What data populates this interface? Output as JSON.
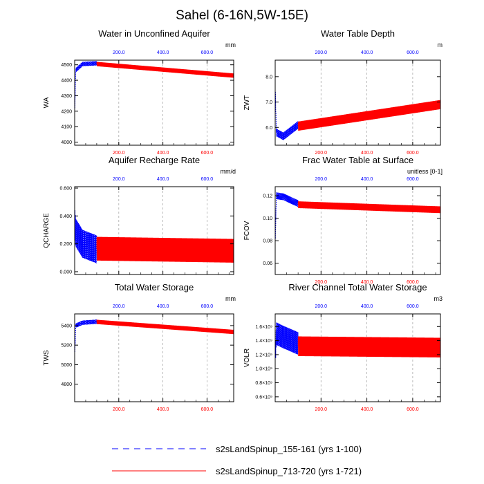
{
  "figure_title": "Sahel (6-16N,5W-15E)",
  "colors": {
    "blue": "#0000ff",
    "red": "#ff0000",
    "purple": "#5a14c8",
    "axis": "#000000",
    "grid": "#aaaaaa"
  },
  "legend": [
    {
      "label": "s2sLandSpinup_155-161 (yrs 1-100)",
      "color": "#0000ff",
      "style": "dashed"
    },
    {
      "label": "s2sLandSpinup_713-720 (yrs 1-721)",
      "color": "#ff0000",
      "style": "solid"
    }
  ],
  "chart_data": [
    {
      "type": "line",
      "title": "Water in Unconfined Aquifer",
      "units": "mm",
      "ylabel": "WA",
      "xlim": [
        0,
        721
      ],
      "ylim": [
        3980,
        4530
      ],
      "yticks": [
        4000,
        4100,
        4200,
        4300,
        4400,
        4500
      ],
      "ytick_labels": [
        "4000",
        "4100",
        "4200",
        "4300",
        "4400",
        "4500"
      ],
      "xticks": [
        200,
        400,
        600
      ],
      "xtick_labels": [
        "200.0",
        "400.0",
        "600.0"
      ],
      "grid": true,
      "top_labels": true,
      "bottom_labels": true,
      "series": [
        {
          "name": "s2sLandSpinup_155-161 (yrs 1-100)",
          "color": "#0000ff",
          "x_range": [
            1,
            100
          ],
          "start": 4220,
          "jump": 4465,
          "plateau": 4505,
          "end": 4510,
          "amp": 14
        },
        {
          "name": "s2sLandSpinup_713-720 (yrs 1-721)",
          "color": "#ff0000",
          "x_range": [
            100,
            721
          ],
          "start": 4505,
          "end": 4430,
          "amp": 14
        }
      ]
    },
    {
      "type": "line",
      "title": "Water Table Depth",
      "units": "m",
      "ylabel": "ZWT",
      "xlim": [
        0,
        721
      ],
      "ylim": [
        5.3,
        8.65
      ],
      "yticks": [
        6.0,
        7.0,
        8.0
      ],
      "ytick_labels": [
        "6.0",
        "7.0",
        "8.0"
      ],
      "xticks": [
        200,
        400,
        600
      ],
      "xtick_labels": [
        "200.0",
        "400.0",
        "600.0"
      ],
      "grid": true,
      "top_labels": true,
      "bottom_labels": true,
      "series": [
        {
          "name": "s2sLandSpinup_155-161 (yrs 1-100)",
          "color": "#0000ff",
          "x_range": [
            1,
            100
          ],
          "start": 7.4,
          "jump": 5.8,
          "plateau": 5.65,
          "end": 6.1,
          "amp": 0.15
        },
        {
          "name": "s2sLandSpinup_713-720 (yrs 1-721)",
          "color": "#ff0000",
          "x_range": [
            100,
            721
          ],
          "start": 6.05,
          "end": 6.9,
          "amp": 0.18
        }
      ]
    },
    {
      "type": "line",
      "title": "Aquifer Recharge Rate",
      "units": "mm/d",
      "ylabel": "QCHARGE",
      "xlim": [
        0,
        721
      ],
      "ylim": [
        -0.02,
        0.61
      ],
      "yticks": [
        0.0,
        0.2,
        0.4,
        0.6
      ],
      "ytick_labels": [
        "0.000",
        "0.200",
        "0.400",
        "0.600"
      ],
      "xticks": [
        200,
        400,
        600
      ],
      "xtick_labels": [
        "200.0",
        "400.0",
        "600.0"
      ],
      "grid": true,
      "top_labels": true,
      "bottom_labels": false,
      "series": [
        {
          "name": "s2sLandSpinup_155-161 (yrs 1-100)",
          "color": "#0000ff",
          "x_range": [
            1,
            100
          ],
          "start": 0.35,
          "jump": 0.28,
          "plateau": 0.2,
          "end": 0.16,
          "amp": 0.1
        },
        {
          "name": "s2sLandSpinup_713-720 (yrs 1-721)",
          "color": "#ff0000",
          "x_range": [
            100,
            721
          ],
          "start": 0.165,
          "end": 0.15,
          "amp": 0.085
        }
      ]
    },
    {
      "type": "line",
      "title": "Frac Water Table at Surface",
      "units": "unitless [0-1]",
      "ylabel": "FCOV",
      "xlim": [
        0,
        721
      ],
      "ylim": [
        0.05,
        0.128
      ],
      "yticks": [
        0.06,
        0.08,
        0.1,
        0.12
      ],
      "ytick_labels": [
        "0.06",
        "0.08",
        "0.10",
        "0.12"
      ],
      "xticks": [
        200,
        400,
        600
      ],
      "xtick_labels": [
        "200.0",
        "400.0",
        "600.0"
      ],
      "grid": true,
      "top_labels": true,
      "bottom_labels": true,
      "series": [
        {
          "name": "s2sLandSpinup_155-161 (yrs 1-100)",
          "color": "#0000ff",
          "x_range": [
            1,
            100
          ],
          "start": 0.082,
          "jump": 0.12,
          "plateau": 0.119,
          "end": 0.113,
          "amp": 0.003
        },
        {
          "name": "s2sLandSpinup_713-720 (yrs 1-721)",
          "color": "#ff0000",
          "x_range": [
            100,
            721
          ],
          "start": 0.112,
          "end": 0.1075,
          "amp": 0.003
        }
      ]
    },
    {
      "type": "line",
      "title": "Total Water Storage",
      "units": "mm",
      "ylabel": "TWS",
      "xlim": [
        0,
        721
      ],
      "ylim": [
        4620,
        5520
      ],
      "yticks": [
        4800,
        5000,
        5200,
        5400
      ],
      "ytick_labels": [
        "4800",
        "5000",
        "5200",
        "5400"
      ],
      "xticks": [
        200,
        400,
        600
      ],
      "xtick_labels": [
        "200.0",
        "400.0",
        "600.0"
      ],
      "grid": true,
      "top_labels": true,
      "bottom_labels": true,
      "series": [
        {
          "name": "s2sLandSpinup_155-161 (yrs 1-100)",
          "color": "#0000ff",
          "x_range": [
            1,
            100
          ],
          "start": 5130,
          "jump": 5400,
          "plateau": 5430,
          "end": 5440,
          "amp": 22
        },
        {
          "name": "s2sLandSpinup_713-720 (yrs 1-721)",
          "color": "#ff0000",
          "x_range": [
            100,
            721
          ],
          "start": 5438,
          "end": 5335,
          "amp": 22
        }
      ]
    },
    {
      "type": "line",
      "title": "River Channel Total Water Storage",
      "units": "m3",
      "ylabel": "VOLR",
      "xlim": [
        0,
        721
      ],
      "ylim": [
        530000000.0,
        1780000000.0
      ],
      "yticks": [
        600000000.0,
        800000000.0,
        1000000000.0,
        1200000000.0,
        1400000000.0,
        1600000000.0
      ],
      "ytick_labels": [
        "0.6×10⁹",
        "0.8×10⁹",
        "1.0×10⁹",
        "1.2×10⁹",
        "1.4×10⁹",
        "1.6×10⁹"
      ],
      "xticks": [
        200,
        400,
        600
      ],
      "xtick_labels": [
        "200.0",
        "400.0",
        "600.0"
      ],
      "grid": true,
      "top_labels": true,
      "bottom_labels": true,
      "series": [
        {
          "name": "s2sLandSpinup_155-161 (yrs 1-100)",
          "color": "#0000ff",
          "x_range": [
            1,
            100
          ],
          "start": 1200000000.0,
          "jump": 1500000000.0,
          "plateau": 1450000000.0,
          "end": 1360000000.0,
          "amp": 160000000.0
        },
        {
          "name": "s2sLandSpinup_713-720 (yrs 1-721)",
          "color": "#ff0000",
          "x_range": [
            100,
            721
          ],
          "start": 1320000000.0,
          "end": 1300000000.0,
          "amp": 140000000.0
        }
      ]
    }
  ]
}
